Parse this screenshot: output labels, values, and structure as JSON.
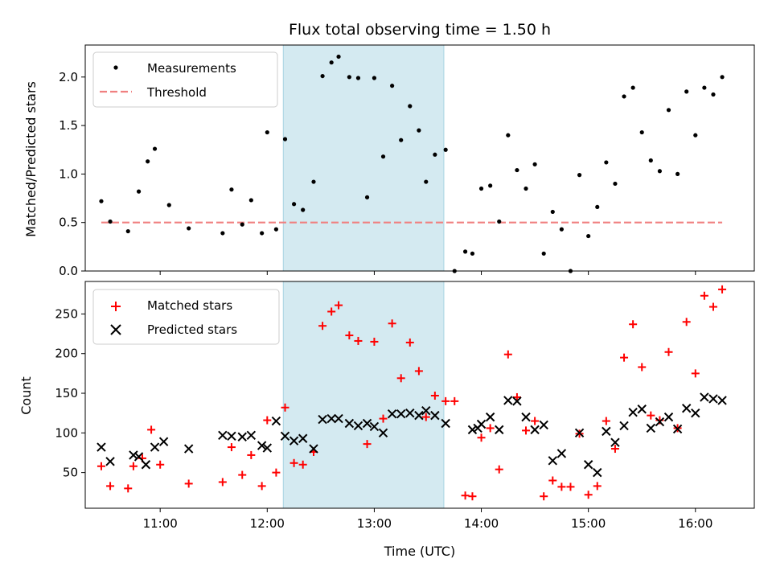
{
  "chart_data": [
    {
      "type": "scatter",
      "title": "Flux total observing time = 1.50 h",
      "ylabel": "Matched/Predicted stars",
      "xlabel": "",
      "xlim": [
        "10:18",
        "16:33"
      ],
      "ylim": [
        0,
        2.33
      ],
      "yticks": [
        "0.0",
        "0.5",
        "1.0",
        "1.5",
        "2.0"
      ],
      "xtick_labels_shown": false,
      "highlight_span": [
        "12:09",
        "13:39"
      ],
      "highlight_color": "#d4eaf1",
      "legend_position": "upper-left",
      "series": [
        {
          "name": "Measurements",
          "marker": "dot",
          "color": "#000000",
          "points": [
            [
              "10:27",
              0.72
            ],
            [
              "10:32",
              0.51
            ],
            [
              "10:42",
              0.41
            ],
            [
              "10:48",
              0.82
            ],
            [
              "10:53",
              1.13
            ],
            [
              "10:57",
              1.26
            ],
            [
              "11:05",
              0.68
            ],
            [
              "11:16",
              0.44
            ],
            [
              "11:35",
              0.39
            ],
            [
              "11:40",
              0.84
            ],
            [
              "11:46",
              0.48
            ],
            [
              "11:51",
              0.73
            ],
            [
              "11:57",
              0.39
            ],
            [
              "12:00",
              1.43
            ],
            [
              "12:05",
              0.43
            ],
            [
              "12:10",
              1.36
            ],
            [
              "12:15",
              0.69
            ],
            [
              "12:20",
              0.63
            ],
            [
              "12:26",
              0.92
            ],
            [
              "12:31",
              2.01
            ],
            [
              "12:36",
              2.15
            ],
            [
              "12:40",
              2.21
            ],
            [
              "12:46",
              2.0
            ],
            [
              "12:51",
              1.99
            ],
            [
              "12:56",
              0.76
            ],
            [
              "13:00",
              1.99
            ],
            [
              "13:05",
              1.18
            ],
            [
              "13:10",
              1.91
            ],
            [
              "13:15",
              1.35
            ],
            [
              "13:20",
              1.7
            ],
            [
              "13:25",
              1.45
            ],
            [
              "13:29",
              0.92
            ],
            [
              "13:34",
              1.2
            ],
            [
              "13:40",
              1.25
            ],
            [
              "13:45",
              0.0
            ],
            [
              "13:51",
              0.2
            ],
            [
              "13:55",
              0.18
            ],
            [
              "14:00",
              0.85
            ],
            [
              "14:05",
              0.88
            ],
            [
              "14:10",
              0.51
            ],
            [
              "14:15",
              1.4
            ],
            [
              "14:20",
              1.04
            ],
            [
              "14:25",
              0.85
            ],
            [
              "14:30",
              1.1
            ],
            [
              "14:35",
              0.18
            ],
            [
              "14:40",
              0.61
            ],
            [
              "14:45",
              0.43
            ],
            [
              "14:50",
              0.0
            ],
            [
              "14:55",
              0.99
            ],
            [
              "15:00",
              0.36
            ],
            [
              "15:05",
              0.66
            ],
            [
              "15:10",
              1.12
            ],
            [
              "15:15",
              0.9
            ],
            [
              "15:20",
              1.8
            ],
            [
              "15:25",
              1.89
            ],
            [
              "15:30",
              1.43
            ],
            [
              "15:35",
              1.14
            ],
            [
              "15:40",
              1.03
            ],
            [
              "15:45",
              1.66
            ],
            [
              "15:50",
              1.0
            ],
            [
              "15:55",
              1.85
            ],
            [
              "16:00",
              1.4
            ],
            [
              "16:05",
              1.89
            ],
            [
              "16:10",
              1.82
            ],
            [
              "16:15",
              2.0
            ]
          ]
        },
        {
          "name": "Threshold",
          "line": "dashed",
          "color": "#f08080",
          "points": [
            [
              "10:27",
              0.5
            ],
            [
              "16:15",
              0.5
            ]
          ]
        }
      ]
    },
    {
      "type": "scatter",
      "title": "",
      "ylabel": "Count",
      "xlabel": "Time (UTC)",
      "xlim": [
        "10:18",
        "16:33"
      ],
      "ylim": [
        5,
        291
      ],
      "yticks": [
        "50",
        "100",
        "150",
        "200",
        "250"
      ],
      "xticks": [
        "11:00",
        "12:00",
        "13:00",
        "14:00",
        "15:00",
        "16:00"
      ],
      "highlight_span": [
        "12:09",
        "13:39"
      ],
      "highlight_color": "#d4eaf1",
      "legend_position": "upper-left",
      "series": [
        {
          "name": "Matched stars",
          "marker": "plus",
          "color": "#ff0000",
          "points": [
            [
              "10:27",
              58
            ],
            [
              "10:32",
              33
            ],
            [
              "10:42",
              30
            ],
            [
              "10:45",
              58
            ],
            [
              "10:50",
              68
            ],
            [
              "10:55",
              104
            ],
            [
              "11:00",
              60
            ],
            [
              "11:16",
              36
            ],
            [
              "11:35",
              38
            ],
            [
              "11:40",
              82
            ],
            [
              "11:46",
              47
            ],
            [
              "11:51",
              72
            ],
            [
              "11:57",
              33
            ],
            [
              "12:00",
              116
            ],
            [
              "12:05",
              50
            ],
            [
              "12:10",
              132
            ],
            [
              "12:15",
              62
            ],
            [
              "12:20",
              60
            ],
            [
              "12:26",
              76
            ],
            [
              "12:31",
              235
            ],
            [
              "12:36",
              253
            ],
            [
              "12:40",
              261
            ],
            [
              "12:46",
              223
            ],
            [
              "12:51",
              216
            ],
            [
              "12:56",
              86
            ],
            [
              "13:00",
              215
            ],
            [
              "13:05",
              118
            ],
            [
              "13:10",
              238
            ],
            [
              "13:15",
              169
            ],
            [
              "13:20",
              214
            ],
            [
              "13:25",
              178
            ],
            [
              "13:29",
              120
            ],
            [
              "13:34",
              147
            ],
            [
              "13:40",
              140
            ],
            [
              "13:45",
              140
            ],
            [
              "13:51",
              21
            ],
            [
              "13:55",
              20
            ],
            [
              "14:00",
              94
            ],
            [
              "14:05",
              106
            ],
            [
              "14:10",
              54
            ],
            [
              "14:15",
              199
            ],
            [
              "14:20",
              145
            ],
            [
              "14:25",
              103
            ],
            [
              "14:30",
              115
            ],
            [
              "14:35",
              20
            ],
            [
              "14:40",
              40
            ],
            [
              "14:45",
              32
            ],
            [
              "14:50",
              32
            ],
            [
              "14:55",
              99
            ],
            [
              "15:00",
              22
            ],
            [
              "15:05",
              33
            ],
            [
              "15:10",
              115
            ],
            [
              "15:15",
              80
            ],
            [
              "15:20",
              195
            ],
            [
              "15:25",
              237
            ],
            [
              "15:30",
              183
            ],
            [
              "15:35",
              122
            ],
            [
              "15:40",
              116
            ],
            [
              "15:45",
              202
            ],
            [
              "15:50",
              106
            ],
            [
              "15:55",
              240
            ],
            [
              "16:00",
              175
            ],
            [
              "16:05",
              273
            ],
            [
              "16:10",
              259
            ],
            [
              "16:15",
              281
            ]
          ]
        },
        {
          "name": "Predicted stars",
          "marker": "x",
          "color": "#000000",
          "points": [
            [
              "10:27",
              82
            ],
            [
              "10:32",
              64
            ],
            [
              "10:45",
              72
            ],
            [
              "10:48",
              70
            ],
            [
              "10:52",
              60
            ],
            [
              "10:57",
              82
            ],
            [
              "11:02",
              89
            ],
            [
              "11:16",
              80
            ],
            [
              "11:35",
              97
            ],
            [
              "11:40",
              96
            ],
            [
              "11:46",
              95
            ],
            [
              "11:51",
              97
            ],
            [
              "11:57",
              84
            ],
            [
              "12:00",
              81
            ],
            [
              "12:05",
              115
            ],
            [
              "12:10",
              96
            ],
            [
              "12:15",
              90
            ],
            [
              "12:20",
              93
            ],
            [
              "12:26",
              80
            ],
            [
              "12:31",
              117
            ],
            [
              "12:36",
              118
            ],
            [
              "12:40",
              118
            ],
            [
              "12:46",
              112
            ],
            [
              "12:51",
              109
            ],
            [
              "12:56",
              112
            ],
            [
              "13:00",
              108
            ],
            [
              "13:05",
              100
            ],
            [
              "13:10",
              124
            ],
            [
              "13:15",
              124
            ],
            [
              "13:20",
              125
            ],
            [
              "13:25",
              122
            ],
            [
              "13:29",
              128
            ],
            [
              "13:34",
              122
            ],
            [
              "13:40",
              112
            ],
            [
              "13:55",
              104
            ],
            [
              "13:58",
              106
            ],
            [
              "14:00",
              111
            ],
            [
              "14:05",
              120
            ],
            [
              "14:10",
              104
            ],
            [
              "14:15",
              141
            ],
            [
              "14:20",
              140
            ],
            [
              "14:25",
              120
            ],
            [
              "14:30",
              104
            ],
            [
              "14:35",
              110
            ],
            [
              "14:40",
              65
            ],
            [
              "14:45",
              74
            ],
            [
              "14:55",
              100
            ],
            [
              "15:00",
              60
            ],
            [
              "15:05",
              50
            ],
            [
              "15:10",
              102
            ],
            [
              "15:15",
              88
            ],
            [
              "15:20",
              109
            ],
            [
              "15:25",
              126
            ],
            [
              "15:30",
              130
            ],
            [
              "15:35",
              106
            ],
            [
              "15:40",
              114
            ],
            [
              "15:45",
              120
            ],
            [
              "15:50",
              105
            ],
            [
              "15:55",
              131
            ],
            [
              "16:00",
              125
            ],
            [
              "16:05",
              145
            ],
            [
              "16:10",
              143
            ],
            [
              "16:15",
              141
            ]
          ]
        }
      ]
    }
  ]
}
